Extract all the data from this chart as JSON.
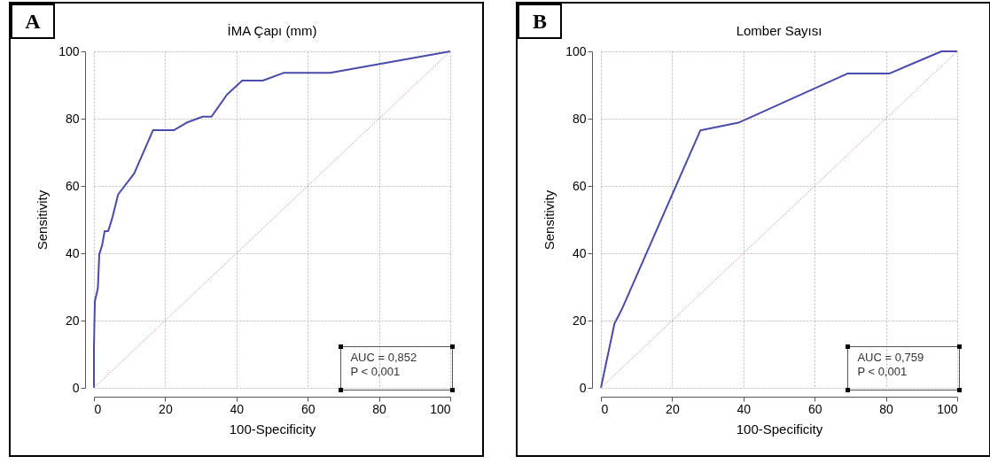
{
  "chart_data": [
    {
      "type": "line",
      "title": "İMA Çapı (mm)",
      "xlabel": "100-Specificity",
      "ylabel": "Sensitivity",
      "xlim": [
        0,
        100
      ],
      "ylim": [
        0,
        100
      ],
      "xticks": [
        0,
        20,
        40,
        60,
        80,
        100
      ],
      "yticks": [
        0,
        20,
        40,
        60,
        80,
        100
      ],
      "grid": true,
      "series": [
        {
          "color": "#4a4aa8",
          "x": [
            0,
            0,
            0.25,
            1.1,
            1.5,
            2.3,
            3,
            4,
            5.2,
            6.8,
            11.3,
            16.6,
            22.5,
            26,
            30.5,
            33,
            37.3,
            41.6,
            47.4,
            53.2,
            66.3,
            100
          ],
          "values": [
            0,
            11.7,
            25.7,
            29.6,
            39.7,
            42.4,
            46.6,
            46.6,
            50.7,
            57.5,
            63.7,
            76.6,
            76.6,
            78.8,
            80.6,
            80.6,
            87.1,
            91.3,
            91.3,
            93.6,
            93.6,
            100
          ]
        },
        {
          "color": "#c07878",
          "line_style": "dotted",
          "x": [
            0,
            100
          ],
          "values": [
            0,
            100
          ]
        }
      ],
      "annotations": [
        "A",
        "AUC = 0,852",
        "P < 0,001"
      ]
    },
    {
      "type": "line",
      "title": "Lomber Sayısı",
      "xlabel": "100-Specificity",
      "ylabel": "Sensitivity",
      "xlim": [
        0,
        100
      ],
      "ylim": [
        0,
        100
      ],
      "xticks": [
        0,
        20,
        40,
        60,
        80,
        100
      ],
      "yticks": [
        0,
        20,
        40,
        60,
        80,
        100
      ],
      "grid": true,
      "series": [
        {
          "color": "#4a4aa8",
          "x": [
            0,
            3.8,
            5.9,
            27.9,
            38.6,
            69.2,
            80.9,
            95.6,
            100
          ],
          "values": [
            0,
            19.1,
            23.4,
            76.5,
            78.8,
            93.4,
            93.4,
            100,
            100
          ]
        },
        {
          "color": "#c07878",
          "line_style": "dotted",
          "x": [
            0,
            100
          ],
          "values": [
            0,
            100
          ]
        }
      ],
      "annotations": [
        "B",
        "AUC = 0,759",
        "P < 0,001"
      ]
    }
  ]
}
